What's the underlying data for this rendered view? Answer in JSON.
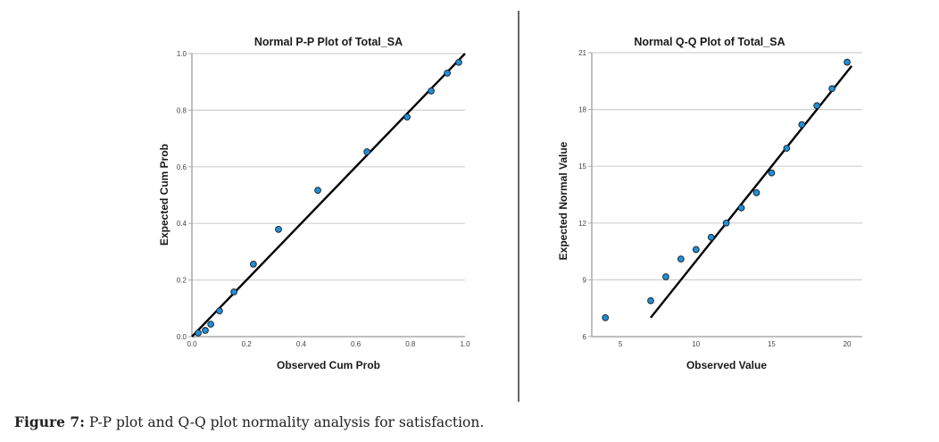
{
  "caption": {
    "label": "Figure 7:",
    "text": " P-P plot and Q-Q plot normality analysis for satisfaction."
  },
  "colors": {
    "point_fill": "#1f8fdb",
    "point_stroke": "#1a1a1a",
    "line": "#000000",
    "gridline": "#d0d0d0",
    "axis": "#aaaaaa",
    "divider": "#666666"
  },
  "chart_data": [
    {
      "type": "scatter",
      "title": "Normal P-P Plot of Total_SA",
      "xlabel": "Observed Cum Prob",
      "ylabel": "Expected Cum Prob",
      "xlim": [
        0.0,
        1.0
      ],
      "ylim": [
        0.0,
        1.0
      ],
      "xticks": [
        0.0,
        0.2,
        0.4,
        0.6,
        0.8,
        1.0
      ],
      "xtick_labels": [
        "0.0",
        "0.2",
        "0.4",
        "0.6",
        "0.8",
        "1.0"
      ],
      "yticks": [
        0.0,
        0.2,
        0.4,
        0.6,
        0.8,
        1.0
      ],
      "ytick_labels": [
        "0.0",
        "0.2",
        "0.4",
        "0.6",
        "0.8",
        "1.0"
      ],
      "grid": "horizontal",
      "reference_line": {
        "x": [
          0.0,
          1.0
        ],
        "y": [
          0.0,
          1.0
        ]
      },
      "points": [
        {
          "x": 0.023,
          "y": 0.013
        },
        {
          "x": 0.049,
          "y": 0.022
        },
        {
          "x": 0.069,
          "y": 0.044
        },
        {
          "x": 0.101,
          "y": 0.091
        },
        {
          "x": 0.154,
          "y": 0.158
        },
        {
          "x": 0.225,
          "y": 0.256
        },
        {
          "x": 0.317,
          "y": 0.379
        },
        {
          "x": 0.461,
          "y": 0.517
        },
        {
          "x": 0.641,
          "y": 0.653
        },
        {
          "x": 0.788,
          "y": 0.776
        },
        {
          "x": 0.876,
          "y": 0.868
        },
        {
          "x": 0.935,
          "y": 0.931
        },
        {
          "x": 0.977,
          "y": 0.969
        }
      ]
    },
    {
      "type": "scatter",
      "title": "Normal Q-Q Plot of Total_SA",
      "xlabel": "Observed Value",
      "ylabel": "Expected Normal Value",
      "xlim": [
        3.1,
        21.0
      ],
      "ylim": [
        6,
        21
      ],
      "xticks": [
        5,
        10,
        15,
        20
      ],
      "xtick_labels": [
        "5",
        "10",
        "15",
        "20"
      ],
      "yticks": [
        6,
        9,
        12,
        15,
        18,
        21
      ],
      "ytick_labels": [
        "6",
        "9",
        "12",
        "15",
        "18",
        "21"
      ],
      "grid": "horizontal",
      "reference_line": {
        "x": [
          7.0,
          20.3
        ],
        "y": [
          7.0,
          20.3
        ]
      },
      "points": [
        {
          "x": 4,
          "y": 7.0
        },
        {
          "x": 7,
          "y": 7.9
        },
        {
          "x": 8,
          "y": 9.16
        },
        {
          "x": 9,
          "y": 10.1
        },
        {
          "x": 10,
          "y": 10.6
        },
        {
          "x": 11,
          "y": 11.25
        },
        {
          "x": 12,
          "y": 12.0
        },
        {
          "x": 13,
          "y": 12.8
        },
        {
          "x": 14,
          "y": 13.6
        },
        {
          "x": 15,
          "y": 14.65
        },
        {
          "x": 16,
          "y": 15.95
        },
        {
          "x": 17,
          "y": 17.2
        },
        {
          "x": 18,
          "y": 18.2
        },
        {
          "x": 19,
          "y": 19.1
        },
        {
          "x": 20,
          "y": 20.5
        }
      ]
    }
  ]
}
